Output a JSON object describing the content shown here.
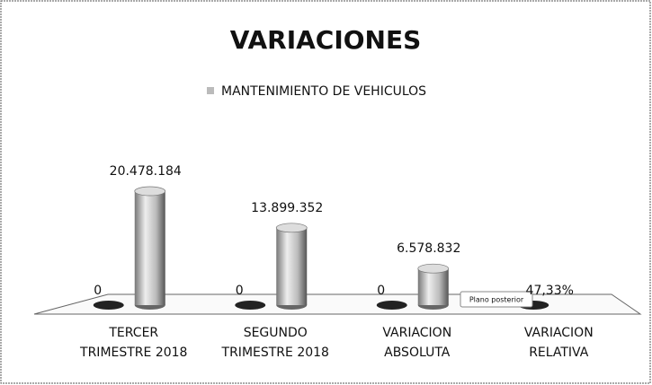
{
  "chart_data": {
    "type": "bar3d",
    "title": "VARIACIONES",
    "categories": [
      "TERCER TRIMESTRE 2018",
      "SEGUNDO TRIMESTRE 2018",
      "VARIACION ABSOLUTA",
      "VARIACION RELATIVA"
    ],
    "series": [
      {
        "color": "#222222",
        "values": [
          0,
          0,
          0,
          0.4733
        ],
        "value_labels": [
          "0",
          "0",
          "0",
          "47,33%"
        ]
      },
      {
        "name": "MANTENIMIENTO DE VEHICULOS",
        "color": "#bbbbbb",
        "values": [
          20478184,
          13899352,
          6578832,
          null
        ],
        "value_labels": [
          "20.478.184",
          "13.899.352",
          "6.578.832",
          null
        ]
      }
    ],
    "ylim": [
      0,
      25000000
    ],
    "tooltip": "Plano posterior"
  }
}
